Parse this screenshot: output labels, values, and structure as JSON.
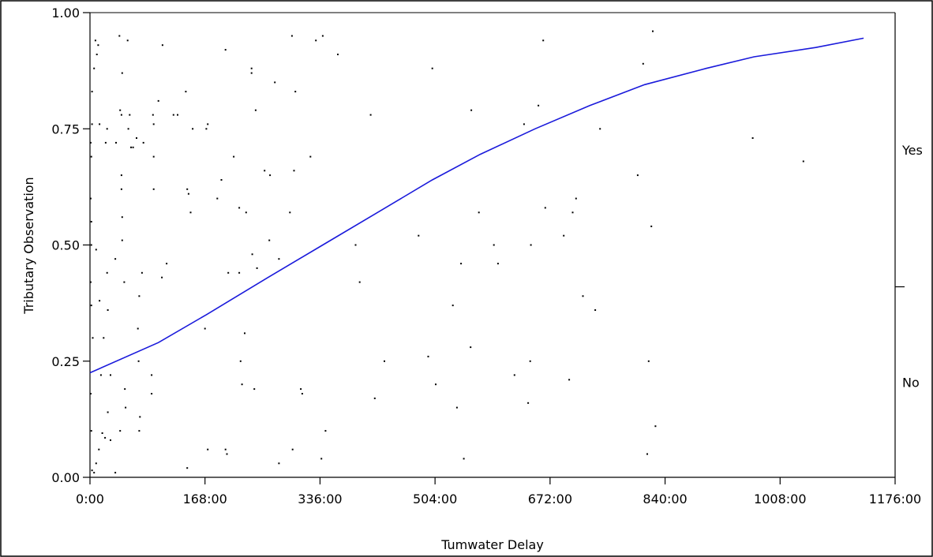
{
  "chart_data": {
    "type": "scatter",
    "title": "",
    "xlabel": "Tumwater Delay",
    "ylabel": "Tributary Observation",
    "xlim": [
      0,
      1176
    ],
    "ylim": [
      0,
      1
    ],
    "x_ticks": [
      0,
      168,
      336,
      504,
      672,
      840,
      1008,
      1176
    ],
    "x_tick_labels": [
      "0:00",
      "168:00",
      "336:00",
      "504:00",
      "672:00",
      "840:00",
      "1008:00",
      "1176:00"
    ],
    "y_ticks": [
      0,
      0.25,
      0.5,
      0.75,
      1
    ],
    "y_tick_labels": [
      "0.00",
      "0.25",
      "0.50",
      "0.75",
      "1.00"
    ],
    "right_axis": {
      "labels": [
        "Yes",
        "No"
      ],
      "split": 0.41
    },
    "grid": false,
    "colors": {
      "fit_line": "#1a1adb",
      "points": "#000000"
    },
    "series": [
      {
        "type": "points",
        "points": [
          [
            1,
            0.72
          ],
          [
            2,
            0.69
          ],
          [
            2,
            0.55
          ],
          [
            1,
            0.42
          ],
          [
            2,
            0.37
          ],
          [
            1,
            0.18
          ],
          [
            2,
            0.1
          ],
          [
            3,
            0.015
          ],
          [
            6,
            0.01
          ],
          [
            3,
            0.76
          ],
          [
            3,
            0.83
          ],
          [
            1,
            0.6
          ],
          [
            2,
            0.5
          ],
          [
            4,
            0.3
          ],
          [
            8,
            0.94
          ],
          [
            10,
            0.91
          ],
          [
            12,
            0.93
          ],
          [
            6,
            0.88
          ],
          [
            14,
            0.76
          ],
          [
            9,
            0.49
          ],
          [
            14,
            0.38
          ],
          [
            16,
            0.22
          ],
          [
            18,
            0.095
          ],
          [
            13,
            0.06
          ],
          [
            9,
            0.03
          ],
          [
            22,
            0.085
          ],
          [
            20,
            0.3
          ],
          [
            25,
            0.75
          ],
          [
            23,
            0.72
          ],
          [
            25,
            0.44
          ],
          [
            26,
            0.36
          ],
          [
            30,
            0.22
          ],
          [
            26,
            0.14
          ],
          [
            30,
            0.08
          ],
          [
            38,
            0.72
          ],
          [
            37,
            0.47
          ],
          [
            43,
            0.95
          ],
          [
            44,
            0.79
          ],
          [
            46,
            0.78
          ],
          [
            47,
            0.87
          ],
          [
            46,
            0.65
          ],
          [
            46,
            0.62
          ],
          [
            47,
            0.56
          ],
          [
            47,
            0.51
          ],
          [
            50,
            0.42
          ],
          [
            51,
            0.19
          ],
          [
            52,
            0.15
          ],
          [
            44,
            0.1
          ],
          [
            37,
            0.01
          ],
          [
            55,
            0.94
          ],
          [
            56,
            0.75
          ],
          [
            58,
            0.78
          ],
          [
            60,
            0.71
          ],
          [
            63,
            0.71
          ],
          [
            68,
            0.73
          ],
          [
            72,
            0.39
          ],
          [
            70,
            0.32
          ],
          [
            71,
            0.25
          ],
          [
            73,
            0.13
          ],
          [
            72,
            0.1
          ],
          [
            78,
            0.72
          ],
          [
            76,
            0.44
          ],
          [
            90,
            0.22
          ],
          [
            92,
            0.78
          ],
          [
            93,
            0.76
          ],
          [
            93,
            0.69
          ],
          [
            93,
            0.62
          ],
          [
            90,
            0.18
          ],
          [
            100,
            0.81
          ],
          [
            105,
            0.43
          ],
          [
            106,
            0.93
          ],
          [
            112,
            0.46
          ],
          [
            122,
            0.78
          ],
          [
            128,
            0.78
          ],
          [
            140,
            0.83
          ],
          [
            142,
            0.62
          ],
          [
            144,
            0.61
          ],
          [
            147,
            0.57
          ],
          [
            150,
            0.75
          ],
          [
            142,
            0.02
          ],
          [
            170,
            0.75
          ],
          [
            172,
            0.76
          ],
          [
            168,
            0.32
          ],
          [
            172,
            0.06
          ],
          [
            186,
            0.6
          ],
          [
            192,
            0.64
          ],
          [
            198,
            0.06
          ],
          [
            200,
            0.05
          ],
          [
            198,
            0.92
          ],
          [
            202,
            0.44
          ],
          [
            210,
            0.69
          ],
          [
            218,
            0.58
          ],
          [
            218,
            0.44
          ],
          [
            220,
            0.25
          ],
          [
            222,
            0.2
          ],
          [
            226,
            0.31
          ],
          [
            228,
            0.57
          ],
          [
            236,
            0.87
          ],
          [
            236,
            0.88
          ],
          [
            237,
            0.48
          ],
          [
            240,
            0.19
          ],
          [
            242,
            0.79
          ],
          [
            244,
            0.45
          ],
          [
            255,
            0.66
          ],
          [
            262,
            0.51
          ],
          [
            263,
            0.65
          ],
          [
            270,
            0.85
          ],
          [
            276,
            0.47
          ],
          [
            276,
            0.03
          ],
          [
            292,
            0.57
          ],
          [
            295,
            0.95
          ],
          [
            298,
            0.66
          ],
          [
            300,
            0.83
          ],
          [
            296,
            0.06
          ],
          [
            308,
            0.19
          ],
          [
            310,
            0.18
          ],
          [
            322,
            0.69
          ],
          [
            330,
            0.94
          ],
          [
            340,
            0.95
          ],
          [
            338,
            0.04
          ],
          [
            344,
            0.1
          ],
          [
            362,
            0.91
          ],
          [
            388,
            0.5
          ],
          [
            394,
            0.42
          ],
          [
            410,
            0.78
          ],
          [
            416,
            0.17
          ],
          [
            430,
            0.25
          ],
          [
            480,
            0.52
          ],
          [
            494,
            0.26
          ],
          [
            500,
            0.88
          ],
          [
            505,
            0.2
          ],
          [
            530,
            0.37
          ],
          [
            536,
            0.15
          ],
          [
            542,
            0.46
          ],
          [
            546,
            0.04
          ],
          [
            556,
            0.28
          ],
          [
            557,
            0.79
          ],
          [
            568,
            0.57
          ],
          [
            590,
            0.5
          ],
          [
            596,
            0.46
          ],
          [
            620,
            0.22
          ],
          [
            634,
            0.76
          ],
          [
            640,
            0.16
          ],
          [
            643,
            0.25
          ],
          [
            644,
            0.5
          ],
          [
            655,
            0.8
          ],
          [
            662,
            0.94
          ],
          [
            665,
            0.58
          ],
          [
            692,
            0.52
          ],
          [
            700,
            0.21
          ],
          [
            705,
            0.57
          ],
          [
            710,
            0.6
          ],
          [
            720,
            0.39
          ],
          [
            738,
            0.36
          ],
          [
            745,
            0.75
          ],
          [
            800,
            0.65
          ],
          [
            808,
            0.89
          ],
          [
            814,
            0.05
          ],
          [
            816,
            0.25
          ],
          [
            820,
            0.54
          ],
          [
            822,
            0.96
          ],
          [
            826,
            0.11
          ],
          [
            968,
            0.73
          ],
          [
            1042,
            0.68
          ]
        ]
      },
      {
        "type": "line",
        "points": [
          [
            0,
            0.225
          ],
          [
            100,
            0.29
          ],
          [
            170,
            0.35
          ],
          [
            260,
            0.43
          ],
          [
            340,
            0.5
          ],
          [
            420,
            0.57
          ],
          [
            500,
            0.64
          ],
          [
            570,
            0.695
          ],
          [
            650,
            0.75
          ],
          [
            730,
            0.8
          ],
          [
            810,
            0.845
          ],
          [
            900,
            0.88
          ],
          [
            970,
            0.905
          ],
          [
            1060,
            0.925
          ],
          [
            1130,
            0.945
          ]
        ]
      }
    ]
  }
}
